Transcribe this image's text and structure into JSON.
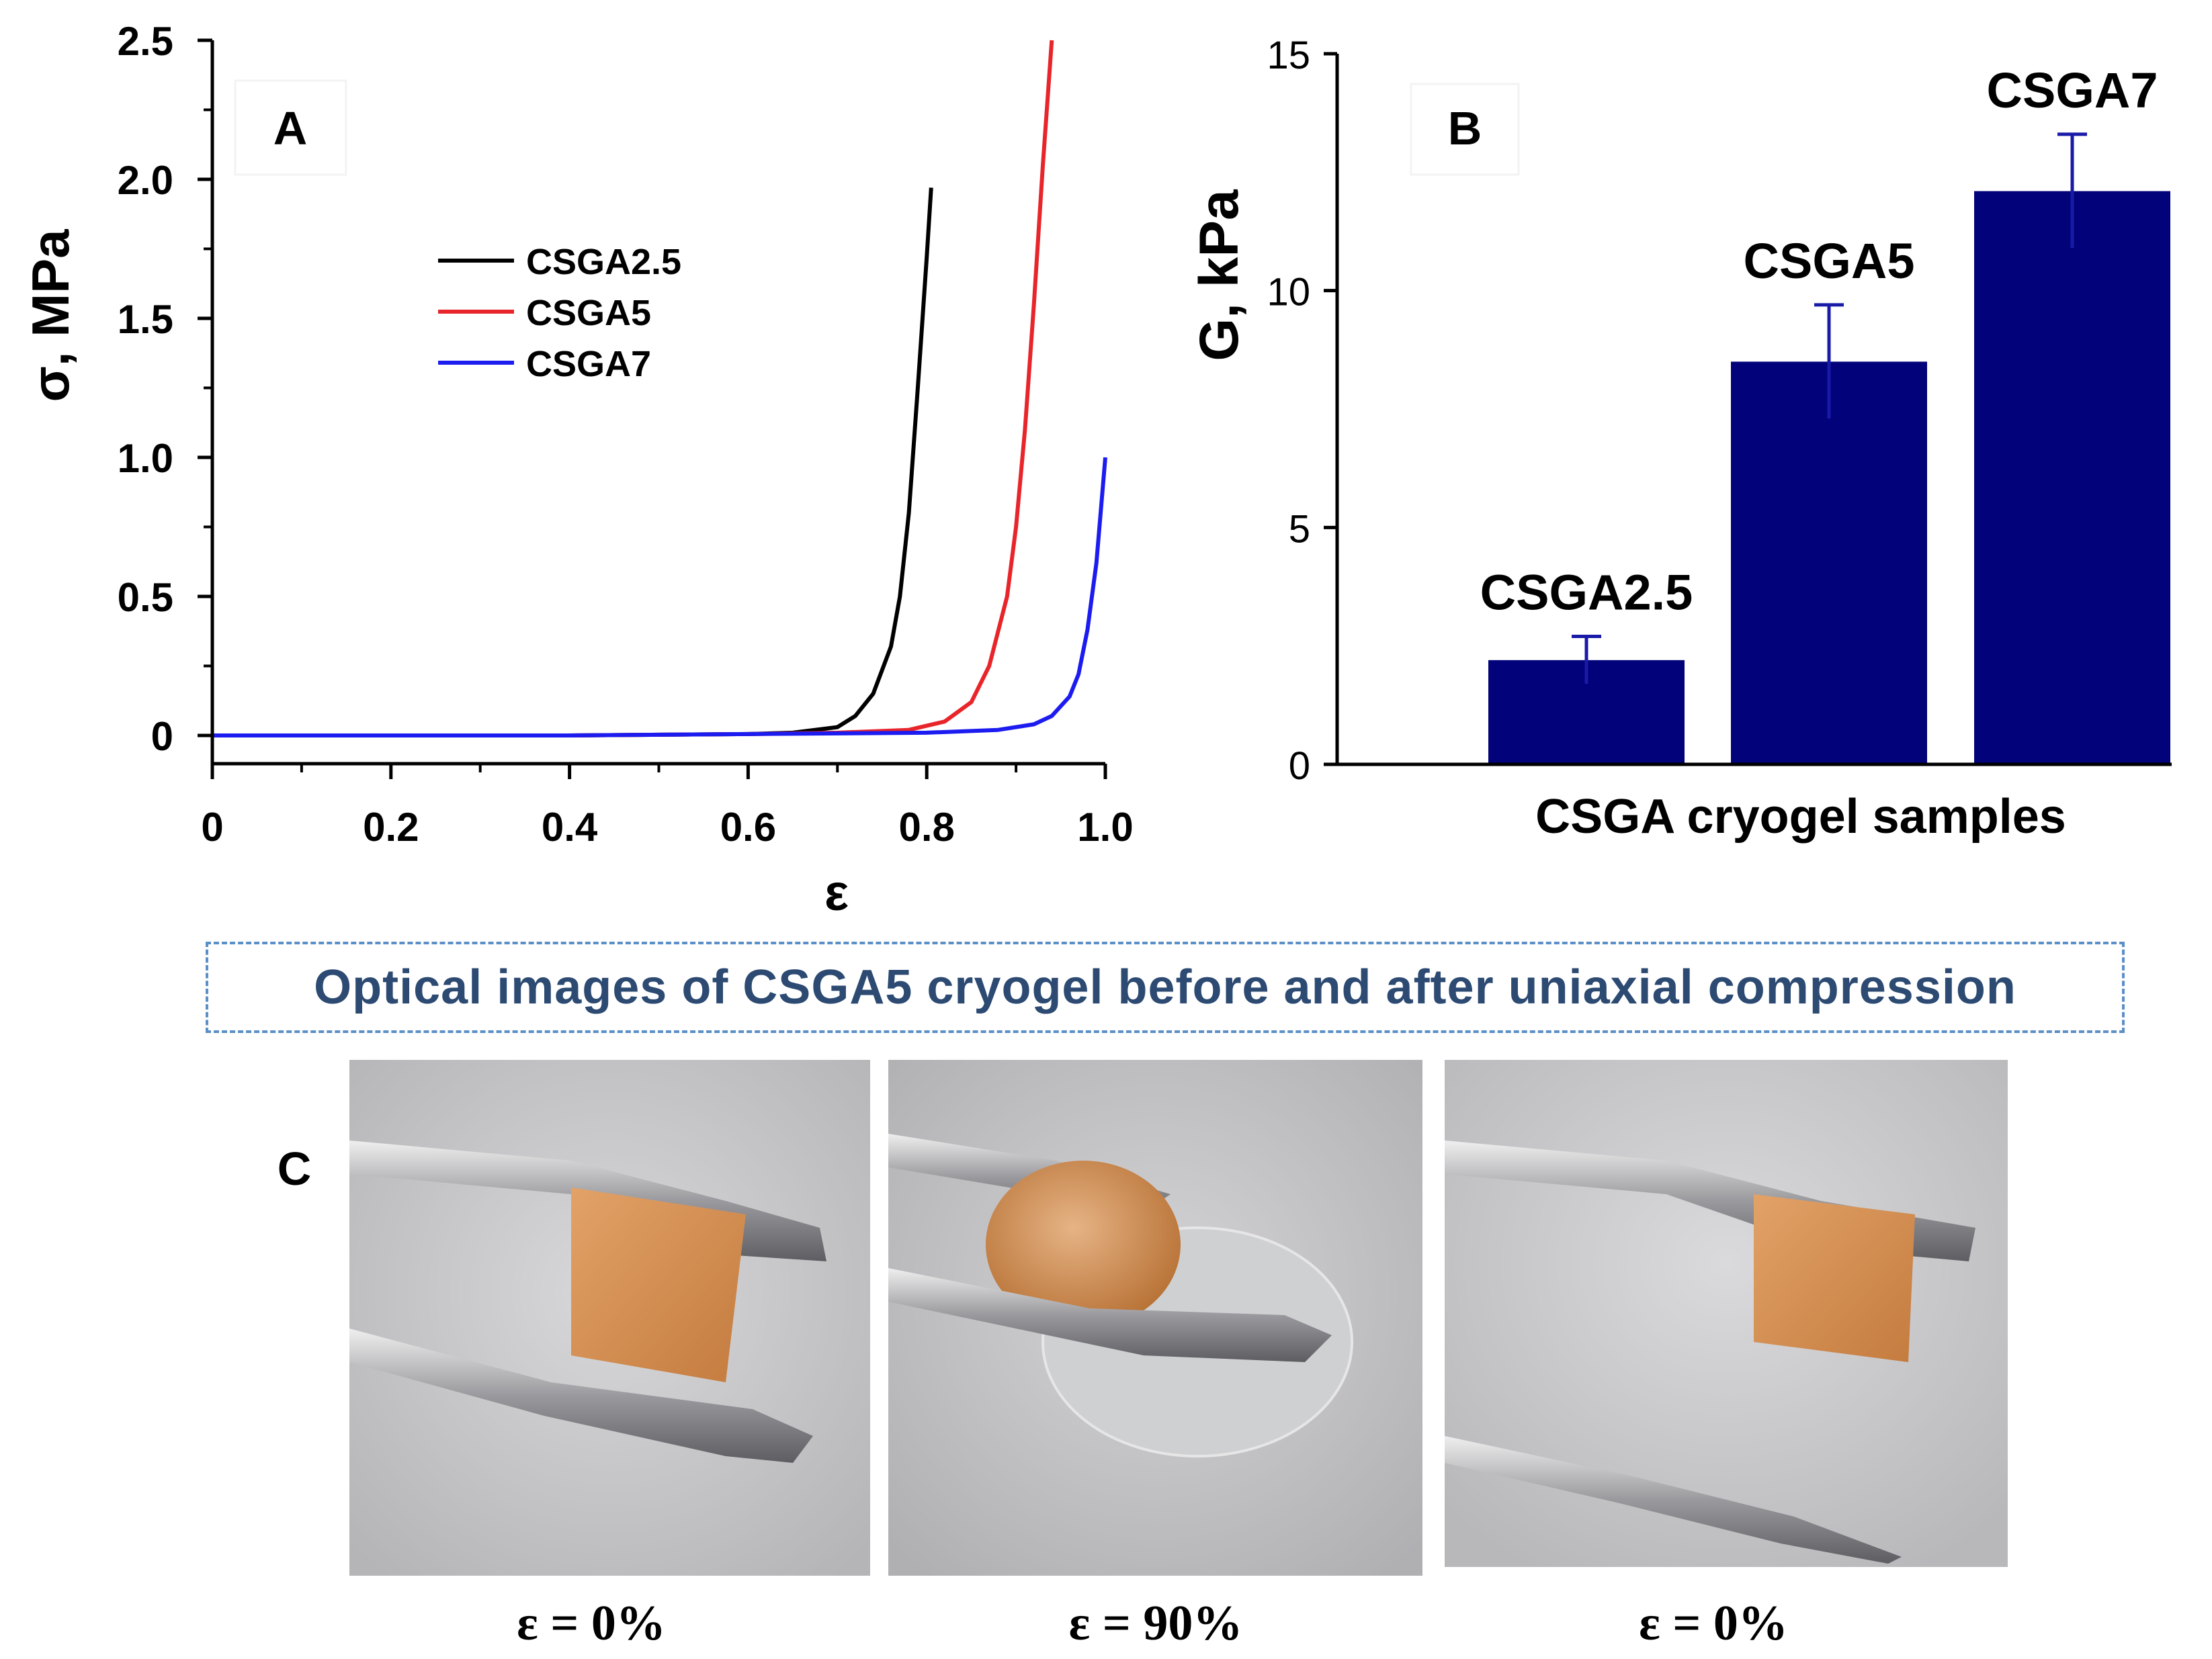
{
  "chart_data": [
    {
      "panel": "A",
      "type": "line",
      "title": "",
      "xlabel": "ε",
      "ylabel": "σ, MPa",
      "xlim": [
        0,
        1.0
      ],
      "ylim": [
        0,
        2.5
      ],
      "xticks": [
        "0",
        "0.2",
        "0.4",
        "0.6",
        "0.8",
        "1.0"
      ],
      "yticks": [
        "0",
        "0.5",
        "1.0",
        "1.5",
        "2.0",
        "2.5"
      ],
      "legend_position": "upper-center",
      "series": [
        {
          "name": "CSGA2.5",
          "color": "#000000",
          "x": [
            0,
            0.2,
            0.4,
            0.6,
            0.65,
            0.7,
            0.72,
            0.74,
            0.76,
            0.77,
            0.78,
            0.79,
            0.8,
            0.805
          ],
          "y": [
            0,
            0,
            0,
            0.005,
            0.01,
            0.03,
            0.07,
            0.15,
            0.32,
            0.5,
            0.8,
            1.25,
            1.72,
            1.97
          ]
        },
        {
          "name": "CSGA5",
          "color": "#e8252a",
          "x": [
            0,
            0.2,
            0.4,
            0.6,
            0.7,
            0.78,
            0.82,
            0.85,
            0.87,
            0.89,
            0.9,
            0.91,
            0.92,
            0.93,
            0.94
          ],
          "y": [
            0,
            0,
            0,
            0.005,
            0.01,
            0.02,
            0.05,
            0.12,
            0.25,
            0.5,
            0.75,
            1.1,
            1.55,
            2.05,
            2.5
          ]
        },
        {
          "name": "CSGA7",
          "color": "#1c1cf0",
          "x": [
            0,
            0.2,
            0.4,
            0.6,
            0.8,
            0.88,
            0.92,
            0.94,
            0.96,
            0.97,
            0.98,
            0.99,
            1.0
          ],
          "y": [
            0,
            0,
            0,
            0.005,
            0.01,
            0.02,
            0.04,
            0.07,
            0.14,
            0.22,
            0.38,
            0.62,
            1.0
          ]
        }
      ]
    },
    {
      "panel": "B",
      "type": "bar",
      "title": "",
      "xlabel": "CSGA cryogel samples",
      "ylabel": "G, kPa",
      "ylim": [
        0,
        15
      ],
      "yticks": [
        "0",
        "5",
        "10",
        "15"
      ],
      "bar_color": "#02027a",
      "categories": [
        "CSGA2.5",
        "CSGA5",
        "CSGA7"
      ],
      "values": [
        2.2,
        8.5,
        12.1
      ],
      "errors": [
        0.5,
        1.2,
        1.2
      ]
    }
  ],
  "panels": {
    "a_label": "A",
    "b_label": "B",
    "c_label": "C"
  },
  "banner": {
    "text": "Optical images of CSGA5 cryogel before and after uniaxial compression"
  },
  "photos": [
    {
      "caption": "ε = 0%"
    },
    {
      "caption": "ε = 90%"
    },
    {
      "caption": "ε = 0%"
    }
  ]
}
